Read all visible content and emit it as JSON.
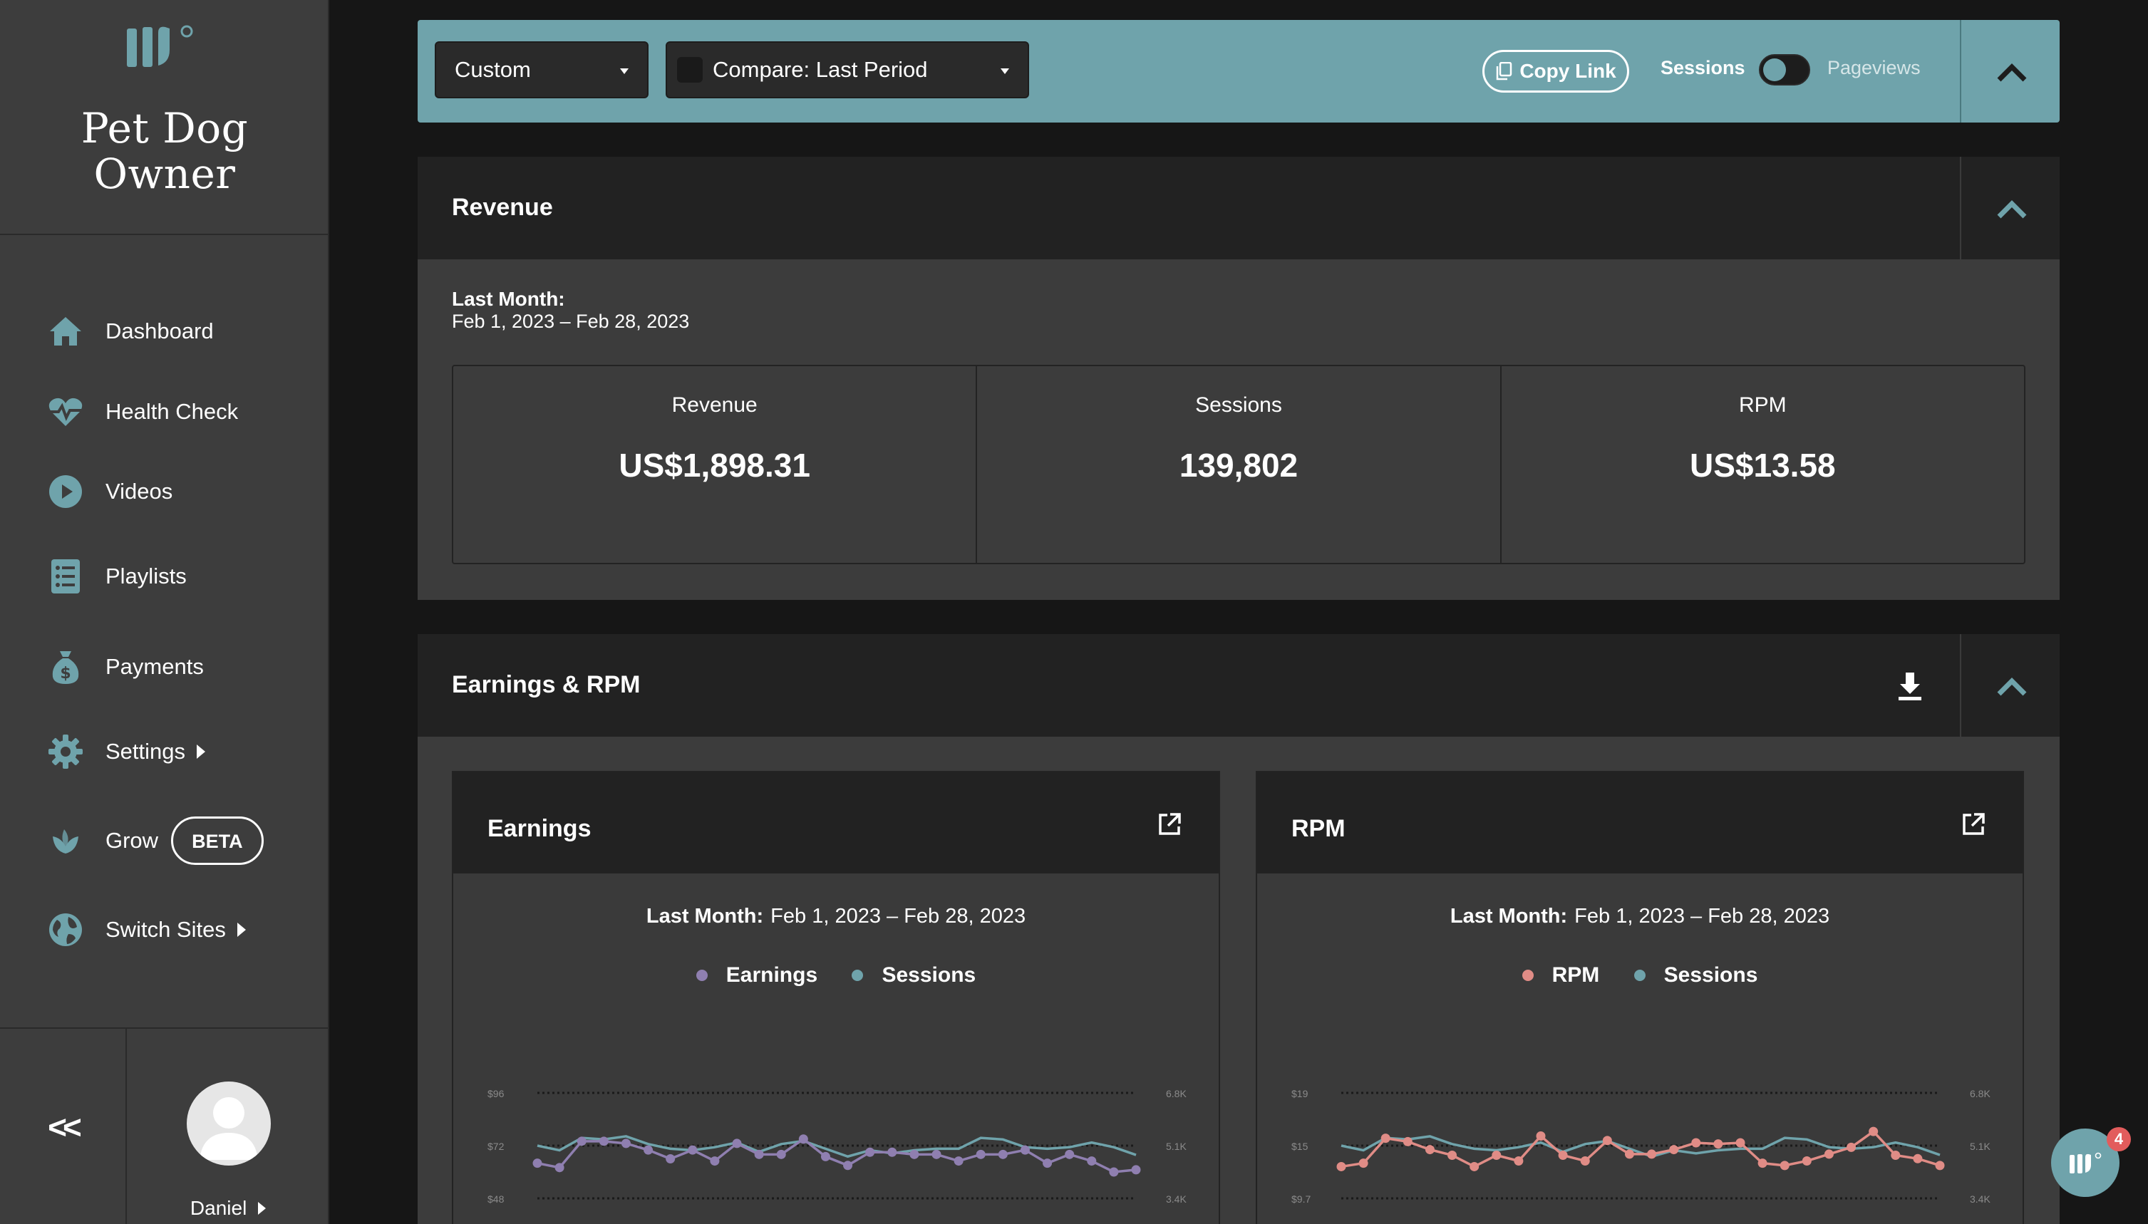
{
  "site": {
    "name": "Pet Dog Owner"
  },
  "colors": {
    "accent": "#6fa3ab",
    "earnings": "#8f7fb0",
    "sessions": "#6fa3ab",
    "rpm": "#e08c86"
  },
  "nav": {
    "items": [
      {
        "label": "Dashboard",
        "icon": "home-icon"
      },
      {
        "label": "Health Check",
        "icon": "heartbeat-icon"
      },
      {
        "label": "Videos",
        "icon": "play-icon"
      },
      {
        "label": "Playlists",
        "icon": "list-icon"
      },
      {
        "label": "Payments",
        "icon": "money-bag-icon"
      },
      {
        "label": "Settings",
        "icon": "gear-icon"
      },
      {
        "label": "Grow",
        "icon": "leaf-icon",
        "badge": "BETA"
      },
      {
        "label": "Switch Sites",
        "icon": "globe-icon"
      }
    ],
    "collapse_label": "<<"
  },
  "user": {
    "name": "Daniel"
  },
  "toolbar": {
    "date_range": "Custom",
    "compare": "Compare: Last Period",
    "copy_link": "Copy Link",
    "toggle_left": "Sessions",
    "toggle_right": "Pageviews"
  },
  "revenue": {
    "title": "Revenue",
    "period_label": "Last Month:",
    "period_range": "Feb 1, 2023 – Feb 28, 2023",
    "metrics": [
      {
        "label": "Revenue",
        "value": "US$1,898.31"
      },
      {
        "label": "Sessions",
        "value": "139,802"
      },
      {
        "label": "RPM",
        "value": "US$13.58"
      }
    ]
  },
  "earnings_rpm": {
    "title": "Earnings & RPM"
  },
  "chat": {
    "badge": "4"
  },
  "chart_data": [
    {
      "type": "line",
      "title": "Earnings",
      "subtitle_label": "Last Month:",
      "subtitle_range": "Feb 1, 2023 – Feb 28, 2023",
      "legend": [
        "Earnings",
        "Sessions"
      ],
      "y_left_ticks": [
        "$96",
        "$72",
        "$48"
      ],
      "y_right_ticks": [
        "6.8K",
        "5.1K",
        "3.4K"
      ],
      "y_left_range": [
        48,
        96
      ],
      "y_right_range": [
        3400,
        6800
      ],
      "series": [
        {
          "name": "Earnings",
          "axis": "left",
          "values": [
            64,
            62,
            74,
            74,
            73,
            70,
            66,
            70,
            65,
            73,
            68,
            68,
            75,
            67,
            63,
            69,
            69,
            68,
            68,
            65,
            68,
            68,
            70,
            64,
            68,
            65,
            60,
            61
          ]
        },
        {
          "name": "Sessions",
          "axis": "right",
          "values": [
            5100,
            4950,
            5350,
            5300,
            5400,
            5150,
            5000,
            4950,
            5050,
            5200,
            4900,
            5150,
            5250,
            5000,
            4750,
            4950,
            4850,
            4950,
            5000,
            5000,
            5350,
            5300,
            5050,
            5000,
            5050,
            5200,
            5050,
            4800
          ]
        }
      ]
    },
    {
      "type": "line",
      "title": "RPM",
      "subtitle_label": "Last Month:",
      "subtitle_range": "Feb 1, 2023 – Feb 28, 2023",
      "legend": [
        "RPM",
        "Sessions"
      ],
      "y_left_ticks": [
        "$19",
        "$15",
        "$9.7"
      ],
      "y_right_ticks": [
        "6.8K",
        "5.1K",
        "3.4K"
      ],
      "y_left_range": [
        9.7,
        19
      ],
      "y_right_range": [
        3400,
        6800
      ],
      "series": [
        {
          "name": "RPM",
          "axis": "left",
          "values": [
            12.5,
            12.8,
            15,
            14.7,
            14,
            13.5,
            12.5,
            13.5,
            13,
            15.2,
            13.5,
            13,
            14.8,
            13.6,
            13.6,
            14,
            14.6,
            14.5,
            14.6,
            12.8,
            12.6,
            13,
            13.6,
            14.2,
            15.6,
            13.5,
            13.2,
            12.6
          ]
        },
        {
          "name": "Sessions",
          "axis": "right",
          "values": [
            5100,
            4950,
            5350,
            5300,
            5400,
            5150,
            5000,
            4950,
            5050,
            5200,
            4900,
            5150,
            5250,
            5000,
            4750,
            4950,
            4850,
            4950,
            5000,
            5000,
            5350,
            5300,
            5050,
            5000,
            5050,
            5200,
            5050,
            4800
          ]
        }
      ]
    }
  ]
}
